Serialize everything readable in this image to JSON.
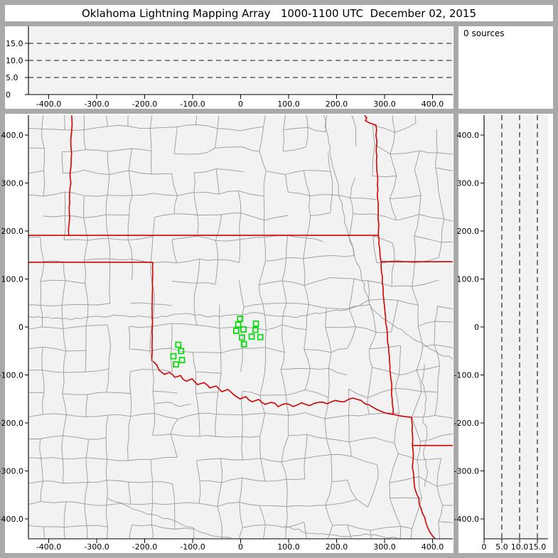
{
  "title": "Oklahoma Lightning Mapping Array   1000-1100 UTC  December 02, 2015",
  "sources_panel": {
    "label": "0 sources"
  },
  "colors": {
    "frame_gray": "#a9a9a9",
    "panel_white": "#ffffff",
    "plot_background": "#f2f2f2",
    "county_line": "#9a9a9a",
    "state_border": "#d40000",
    "station_green": "#00dd00",
    "axis_black": "#000000",
    "dashed_line": "#111111"
  },
  "axes": {
    "km_tick_values": [
      -400,
      -300,
      -200,
      -100,
      0,
      100,
      200,
      300,
      400
    ],
    "km_tick_labels": [
      "-400.0",
      "-300.0",
      "-200.0",
      "-100.0",
      "0",
      "100.0",
      "200.0",
      "300.0",
      "400.0"
    ],
    "alt_tick_values": [
      0,
      5,
      10,
      15
    ],
    "alt_tick_labels": [
      "0",
      "5.0",
      "10.0",
      "15.0"
    ],
    "dashed_altitudes_km": [
      5,
      10,
      15
    ]
  },
  "chart_data": {
    "type": "scatter",
    "title": "Oklahoma Lightning Mapping Array   1000-1100 UTC  December 02, 2015",
    "source_count_text": "0 sources",
    "lightning_source_points": [],
    "panels": {
      "altitude_vs_eastwest": {
        "x_range_km": [
          -442,
          442
        ],
        "alt_range_km": [
          0,
          20
        ],
        "x_ticks": [
          "-400.0",
          "-300.0",
          "-200.0",
          "-100.0",
          "0",
          "100.0",
          "200.0",
          "300.0",
          "400.0"
        ],
        "alt_ticks": [
          "0",
          "5.0",
          "10.0",
          "15.0"
        ],
        "dashed_gridlines_alt_km": [
          5,
          10,
          15
        ],
        "points": []
      },
      "plan_view_map": {
        "x_range_km": [
          -442,
          442
        ],
        "y_range_km": [
          -441,
          441
        ],
        "tick_step_km": 100,
        "lma_stations_km": [
          [
            -1,
            17
          ],
          [
            -5,
            5
          ],
          [
            32,
            7
          ],
          [
            -9,
            -8
          ],
          [
            6,
            -5
          ],
          [
            31,
            -6
          ],
          [
            3,
            -22
          ],
          [
            23,
            -20
          ],
          [
            41,
            -21
          ],
          [
            7,
            -36
          ],
          [
            -130,
            -37
          ],
          [
            -124,
            -50
          ],
          [
            -140,
            -61
          ],
          [
            -122,
            -69
          ],
          [
            -135,
            -78
          ]
        ],
        "points": []
      },
      "altitude_vs_northsouth": {
        "alt_range_km": [
          0,
          18
        ],
        "y_range_km": [
          -441,
          441
        ],
        "alt_ticks": [
          "0",
          "5.0",
          "10.0",
          "15.0"
        ],
        "dashed_gridlines_alt_km": [
          5,
          10,
          15
        ],
        "points": []
      }
    }
  },
  "map_geometry": {
    "state_borders_km": [
      {
        "name": "kansas-oklahoma-37N",
        "amp": 0,
        "pts": [
          [
            -442,
            191
          ],
          [
            287,
            191
          ]
        ]
      },
      {
        "name": "colorado-kansas-102W",
        "amp": 0.9,
        "pts": [
          [
            -352,
            441
          ],
          [
            -353,
            400
          ],
          [
            -354,
            330
          ],
          [
            -356,
            260
          ],
          [
            -358,
            191
          ]
        ]
      },
      {
        "name": "ok-panhandle-36.5N",
        "amp": 0,
        "pts": [
          [
            -442,
            135
          ],
          [
            -183,
            135
          ]
        ]
      },
      {
        "name": "texas-oklahoma-100W",
        "amp": 0.5,
        "pts": [
          [
            -183,
            135
          ],
          [
            -184,
            60
          ],
          [
            -184,
            0
          ],
          [
            -185,
            -71
          ]
        ]
      },
      {
        "name": "red-river",
        "amp": 1.6,
        "pts": [
          [
            -183,
            -71
          ],
          [
            -170,
            -90
          ],
          [
            -159,
            -99
          ],
          [
            -149,
            -95
          ],
          [
            -137,
            -105
          ],
          [
            -125,
            -101
          ],
          [
            -113,
            -113
          ],
          [
            -101,
            -108
          ],
          [
            -90,
            -120
          ],
          [
            -76,
            -116
          ],
          [
            -64,
            -127
          ],
          [
            -51,
            -123
          ],
          [
            -39,
            -135
          ],
          [
            -26,
            -130
          ],
          [
            -13,
            -142
          ],
          [
            -1,
            -150
          ],
          [
            11,
            -145
          ],
          [
            24,
            -156
          ],
          [
            38,
            -151
          ],
          [
            51,
            -161
          ],
          [
            64,
            -157
          ],
          [
            78,
            -166
          ],
          [
            91,
            -160
          ],
          [
            109,
            -166
          ],
          [
            127,
            -158
          ],
          [
            144,
            -164
          ],
          [
            162,
            -157
          ],
          [
            180,
            -160
          ],
          [
            198,
            -153
          ],
          [
            216,
            -156
          ],
          [
            233,
            -148
          ],
          [
            251,
            -153
          ],
          [
            269,
            -163
          ],
          [
            284,
            -172
          ],
          [
            298,
            -178
          ],
          [
            309,
            -181
          ],
          [
            318,
            -182
          ],
          [
            331,
            -185
          ],
          [
            344,
            -187
          ],
          [
            356,
            -188
          ]
        ]
      },
      {
        "name": "kansas-missouri-oklahoma-arkansas-east",
        "amp": 0.8,
        "pts": [
          [
            258,
            441
          ],
          [
            263,
            436
          ],
          [
            260,
            430
          ],
          [
            269,
            425
          ],
          [
            278,
            422
          ],
          [
            282,
            421
          ],
          [
            284,
            356
          ],
          [
            285,
            296
          ],
          [
            287,
            237
          ],
          [
            287,
            191
          ],
          [
            290,
            163
          ],
          [
            293,
            136
          ],
          [
            297,
            82
          ],
          [
            301,
            30
          ],
          [
            306,
            -22
          ],
          [
            310,
            -71
          ],
          [
            315,
            -118
          ],
          [
            316,
            -151
          ],
          [
            318,
            -170
          ],
          [
            318,
            -182
          ]
        ]
      },
      {
        "name": "missouri-arkansas-36.5N",
        "amp": 0,
        "pts": [
          [
            293,
            136
          ],
          [
            442,
            136
          ]
        ]
      },
      {
        "name": "texas-arkansas",
        "amp": 0.5,
        "pts": [
          [
            356,
            -188
          ],
          [
            358,
            -207
          ],
          [
            358,
            -247
          ]
        ]
      },
      {
        "name": "arkansas-louisiana-33N",
        "amp": 0,
        "pts": [
          [
            358,
            -247
          ],
          [
            442,
            -247
          ]
        ]
      },
      {
        "name": "texas-louisiana",
        "amp": 1.4,
        "pts": [
          [
            358,
            -247
          ],
          [
            359,
            -281
          ],
          [
            361,
            -314
          ],
          [
            367,
            -348
          ],
          [
            376,
            -378
          ],
          [
            386,
            -407
          ],
          [
            398,
            -433
          ],
          [
            405,
            -441
          ]
        ]
      }
    ],
    "rivers_km": [
      {
        "name": "canadian-river",
        "pts": [
          [
            -442,
            22
          ],
          [
            -353,
            15
          ],
          [
            -264,
            25
          ],
          [
            -183,
            19
          ],
          [
            -116,
            28
          ],
          [
            -42,
            21
          ],
          [
            32,
            30
          ],
          [
            106,
            21
          ],
          [
            165,
            28
          ],
          [
            210,
            34
          ],
          [
            247,
            44
          ],
          [
            269,
            47
          ]
        ]
      },
      {
        "name": "arkansas-river",
        "pts": [
          [
            173,
            441
          ],
          [
            183,
            385
          ],
          [
            195,
            326
          ],
          [
            207,
            267
          ],
          [
            221,
            207
          ],
          [
            236,
            156
          ],
          [
            251,
            107
          ],
          [
            261,
            71
          ],
          [
            269,
            47
          ],
          [
            287,
            27
          ],
          [
            306,
            12
          ],
          [
            328,
            -3
          ],
          [
            358,
            -24
          ],
          [
            395,
            -46
          ],
          [
            442,
            -67
          ]
        ]
      },
      {
        "name": "ouachita-river",
        "pts": [
          [
            383,
            -77
          ],
          [
            377,
            -114
          ],
          [
            387,
            -152
          ],
          [
            380,
            -189
          ],
          [
            389,
            -226
          ],
          [
            381,
            -263
          ],
          [
            390,
            -300
          ],
          [
            384,
            -333
          ]
        ]
      },
      {
        "name": "pease-river",
        "pts": [
          [
            -178,
            -160
          ],
          [
            -153,
            -157
          ],
          [
            -128,
            -166
          ],
          [
            -104,
            -161
          ]
        ]
      },
      {
        "name": "brazos-river",
        "pts": [
          [
            -279,
            -356
          ],
          [
            -205,
            -385
          ],
          [
            -131,
            -407
          ],
          [
            -72,
            -430
          ],
          [
            -13,
            -444
          ]
        ]
      },
      {
        "name": "trinity-river",
        "pts": [
          [
            91,
            -415
          ],
          [
            150,
            -430
          ],
          [
            210,
            -437
          ],
          [
            269,
            -433
          ],
          [
            328,
            -441
          ]
        ]
      }
    ],
    "county_grid": {
      "seed": 20151202,
      "spacing_km": 46,
      "jitter_west_km": 5,
      "jitter_mid_km": 8,
      "jitter_east_km": 12,
      "skip_prob": 0.22,
      "north_skip_prob": 0.32
    }
  }
}
